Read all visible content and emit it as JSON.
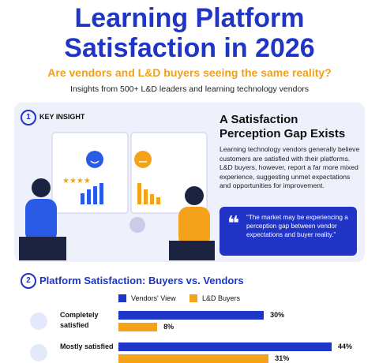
{
  "header": {
    "title": "Learning Platform Satisfaction in 2026",
    "subtitle": "Are vendors and L&D buyers seeing the same reality?",
    "tagline": "Insights from 500+ L&D leaders and learning technology vendors"
  },
  "insight": {
    "number": "1",
    "label": "KEY INSIGHT",
    "heading": "A Satisfaction Perception Gap Exists",
    "body": "Learning technology vendors generally believe customers are satisfied with their platforms. L&D buyers, however, report a far more mixed experience, suggesting unmet expectations and opportunities for improvement.",
    "quote": "“The market may be experiencing a perception gap between vendor expectations and buyer reality.”"
  },
  "section": {
    "number": "2",
    "title": "Platform Satisfaction: Buyers vs. Vendors"
  },
  "chart_data": {
    "type": "bar",
    "categories": [
      "Completely satisfied",
      "Mostly satisfied"
    ],
    "series": [
      {
        "name": "Vendors' View",
        "color": "#1f35c8",
        "values": [
          30,
          44
        ],
        "value_labels": [
          "30%",
          "44%"
        ]
      },
      {
        "name": "L&D Buyers",
        "color": "#f5a21b",
        "values": [
          8,
          31
        ],
        "value_labels": [
          "8%",
          "31%"
        ]
      }
    ]
  }
}
